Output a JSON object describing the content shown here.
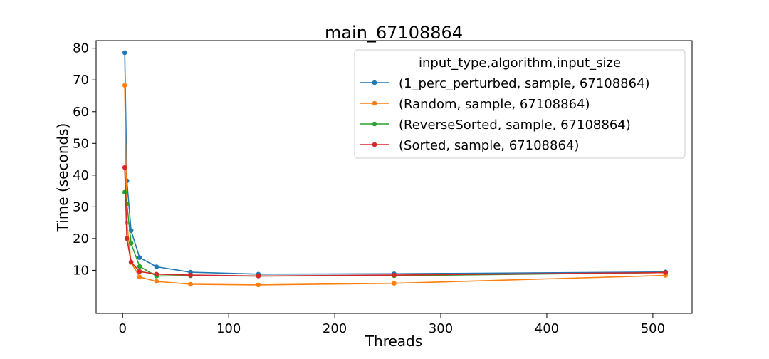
{
  "chart_data": {
    "type": "line",
    "title": "main_67108864",
    "xlabel": "Threads",
    "ylabel": "Time (seconds)",
    "xlim": [
      -25,
      537
    ],
    "ylim": [
      -3.6,
      82.4
    ],
    "xticks": [
      0,
      100,
      200,
      300,
      400,
      500
    ],
    "yticks": [
      10,
      20,
      30,
      40,
      50,
      60,
      70,
      80
    ],
    "grid": false,
    "legend": {
      "title": "input_type,algorithm,input_size",
      "placement": "top-right"
    },
    "x": [
      2,
      4,
      8,
      16,
      32,
      64,
      128,
      256,
      512
    ],
    "series": [
      {
        "name": "(1_perc_perturbed, sample, 67108864)",
        "color": "#1f77b4",
        "values": [
          78.6,
          38.2,
          22.5,
          14.0,
          11.1,
          9.4,
          8.8,
          8.9,
          9.5
        ]
      },
      {
        "name": "(Random, sample, 67108864)",
        "color": "#ff7f0e",
        "values": [
          68.3,
          25.0,
          12.5,
          7.9,
          6.5,
          5.6,
          5.4,
          5.9,
          8.4
        ]
      },
      {
        "name": "(ReverseSorted, sample, 67108864)",
        "color": "#2ca02c",
        "values": [
          34.6,
          31.0,
          18.5,
          11.2,
          8.2,
          8.3,
          8.2,
          8.3,
          9.3
        ]
      },
      {
        "name": "(Sorted, sample, 67108864)",
        "color": "#d62728",
        "values": [
          42.4,
          20.0,
          12.6,
          9.6,
          8.8,
          8.5,
          8.2,
          8.5,
          9.3
        ]
      }
    ]
  }
}
